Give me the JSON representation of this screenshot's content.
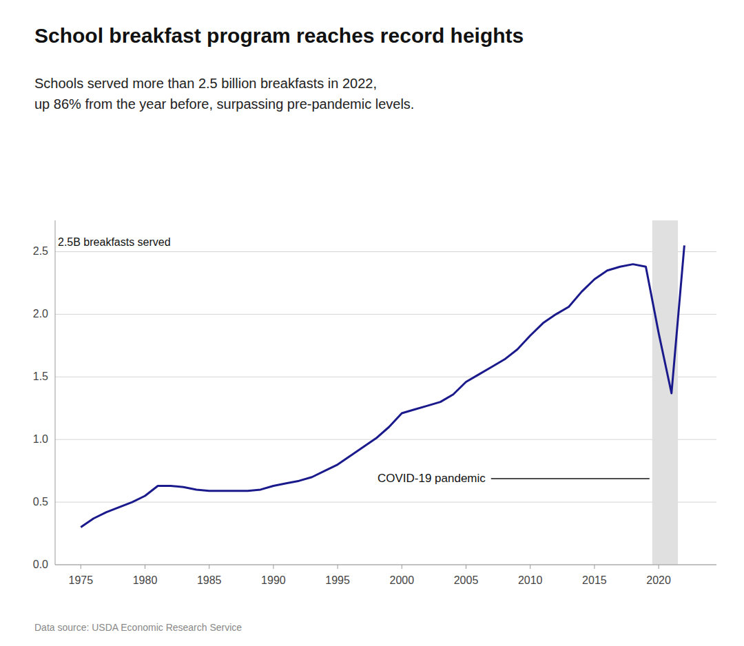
{
  "chart_data": {
    "type": "line",
    "title": "School breakfast program reaches record heights",
    "subtitle": "Schools served more than 2.5 billion breakfasts in 2022,\nup 86% from the year before, surpassing pre-pandemic levels.",
    "y_label": "2.5B breakfasts served",
    "source": "Data source: USDA Economic Research Service",
    "annotation": "COVID-19 pandemic",
    "color": "#1a1a8c",
    "shaded_range": {
      "x": [
        2019.5,
        2021.5
      ],
      "color": "#e0e0e0"
    },
    "x": [
      1975,
      1976,
      1977,
      1978,
      1979,
      1980,
      1981,
      1982,
      1983,
      1984,
      1985,
      1986,
      1987,
      1988,
      1989,
      1990,
      1991,
      1992,
      1993,
      1994,
      1995,
      1996,
      1997,
      1998,
      1999,
      2000,
      2001,
      2002,
      2003,
      2004,
      2005,
      2006,
      2007,
      2008,
      2009,
      2010,
      2011,
      2012,
      2013,
      2014,
      2015,
      2016,
      2017,
      2018,
      2019,
      2020,
      2021,
      2022
    ],
    "values": [
      0.3,
      0.37,
      0.42,
      0.46,
      0.5,
      0.55,
      0.63,
      0.63,
      0.62,
      0.6,
      0.59,
      0.59,
      0.59,
      0.59,
      0.6,
      0.63,
      0.65,
      0.67,
      0.7,
      0.75,
      0.8,
      0.87,
      0.94,
      1.01,
      1.1,
      1.21,
      1.24,
      1.27,
      1.3,
      1.36,
      1.46,
      1.52,
      1.58,
      1.64,
      1.72,
      1.83,
      1.93,
      2.0,
      2.06,
      2.18,
      2.28,
      2.35,
      2.38,
      2.4,
      2.38,
      1.85,
      1.37,
      2.55
    ],
    "xlim": [
      1973,
      2024.5
    ],
    "xticks": [
      1975,
      1980,
      1985,
      1990,
      1995,
      2000,
      2005,
      2010,
      2015,
      2020
    ],
    "ylim": [
      0,
      2.75
    ],
    "yticks": [
      {
        "value": 0.0,
        "label": "0.0"
      },
      {
        "value": 0.5,
        "label": "0.5"
      },
      {
        "value": 1.0,
        "label": "1.0"
      },
      {
        "value": 1.5,
        "label": "1.5"
      },
      {
        "value": 2.0,
        "label": "2.0"
      },
      {
        "value": 2.5,
        "label": "2.5"
      }
    ],
    "grid": true
  }
}
